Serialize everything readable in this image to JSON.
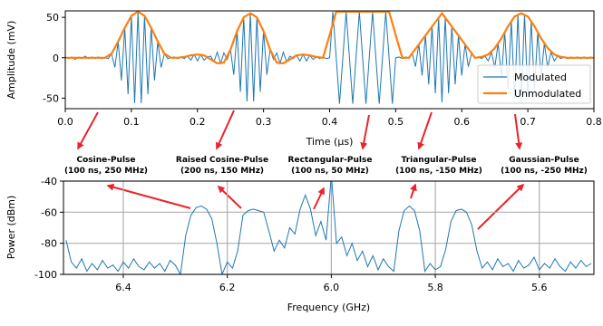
{
  "chart_data": [
    {
      "type": "line",
      "xlabel": "Time (μs)",
      "ylabel": "Amplitude (mV)",
      "xlim": [
        0,
        0.8
      ],
      "ylim": [
        -63,
        58
      ],
      "xticks": [
        {
          "value": 0,
          "label": "0.0"
        },
        0.1,
        0.2,
        0.3,
        0.4,
        0.5,
        0.6,
        0.7,
        0.8
      ],
      "yticks": [
        -50,
        0,
        50
      ],
      "legend": "lower right",
      "grid": false,
      "series": [
        {
          "name": "Modulated",
          "color": "#1f77b4",
          "x": [
            0,
            0.005,
            0.01,
            0.015,
            0.02,
            0.025,
            0.03,
            0.035,
            0.04,
            0.045,
            0.05,
            0.055,
            0.06,
            0.065,
            0.07,
            0.075,
            0.08,
            0.085,
            0.09,
            0.095,
            0.1,
            0.105,
            0.11,
            0.115,
            0.12,
            0.125,
            0.13,
            0.135,
            0.14,
            0.145,
            0.15,
            0.155,
            0.16,
            0.165,
            0.17,
            0.175,
            0.18,
            0.185,
            0.19,
            0.195,
            0.2,
            0.205,
            0.21,
            0.215,
            0.22,
            0.225,
            0.23,
            0.235,
            0.24,
            0.245,
            0.25,
            0.255,
            0.26,
            0.265,
            0.27,
            0.275,
            0.28,
            0.285,
            0.29,
            0.295,
            0.3,
            0.305,
            0.31,
            0.315,
            0.32,
            0.325,
            0.33,
            0.335,
            0.34,
            0.345,
            0.35,
            0.355,
            0.36,
            0.365,
            0.37,
            0.375,
            0.38,
            0.385,
            0.39,
            0.395,
            0.4,
            0.405,
            0.41,
            0.415,
            0.42,
            0.425,
            0.43,
            0.435,
            0.44,
            0.445,
            0.45,
            0.455,
            0.46,
            0.465,
            0.47,
            0.475,
            0.48,
            0.485,
            0.49,
            0.495,
            0.5,
            0.505,
            0.51,
            0.515,
            0.52,
            0.525,
            0.53,
            0.535,
            0.54,
            0.545,
            0.55,
            0.555,
            0.56,
            0.565,
            0.57,
            0.575,
            0.58,
            0.585,
            0.59,
            0.595,
            0.6,
            0.605,
            0.61,
            0.615,
            0.62,
            0.625,
            0.63,
            0.635,
            0.64,
            0.645,
            0.65,
            0.655,
            0.66,
            0.665,
            0.67,
            0.675,
            0.68,
            0.685,
            0.69,
            0.695,
            0.7,
            0.705,
            0.71,
            0.715,
            0.72,
            0.725,
            0.73,
            0.735,
            0.74,
            0.745,
            0.75,
            0.755,
            0.76,
            0.765,
            0.77,
            0.775,
            0.78,
            0.785,
            0.79,
            0.795,
            0.8
          ],
          "values": [
            1,
            -1,
            1,
            -2,
            1,
            -1,
            2,
            -1,
            1,
            -1,
            1,
            -1,
            0,
            -1,
            5,
            -12,
            20,
            -28,
            37,
            -45,
            52,
            -56,
            57,
            -56,
            52,
            -45,
            37,
            -28,
            20,
            -12,
            5,
            -1,
            0,
            1,
            -1,
            1,
            -1,
            2,
            -3,
            4,
            -4,
            4,
            -3,
            1,
            2,
            -5,
            7,
            -7,
            6,
            -2,
            10,
            -21,
            33,
            -42,
            50,
            -54,
            55,
            -54,
            50,
            -42,
            33,
            -21,
            10,
            -2,
            6,
            -7,
            7,
            -5,
            2,
            -1,
            3,
            -4,
            4,
            -4,
            3,
            -2,
            1,
            -1,
            1,
            -1,
            0,
            57,
            0,
            -57,
            0,
            57,
            0,
            -57,
            0,
            57,
            0,
            -57,
            0,
            57,
            0,
            -57,
            0,
            57,
            0,
            -57,
            0,
            1,
            -1,
            1,
            0,
            6,
            -11,
            17,
            -22,
            28,
            -33,
            39,
            -44,
            50,
            -55,
            50,
            -44,
            39,
            -33,
            28,
            -22,
            17,
            -11,
            6,
            0,
            1,
            -1,
            2,
            -4,
            7,
            -12,
            18,
            -24,
            32,
            -39,
            46,
            -51,
            54,
            -55,
            54,
            -51,
            46,
            -39,
            32,
            -24,
            18,
            -12,
            7,
            -4,
            2,
            -1,
            1,
            -1,
            1,
            -1,
            1,
            -1,
            1,
            -1,
            1,
            -1
          ]
        },
        {
          "name": "Unmodulated",
          "color": "#ff7f0e",
          "x": [
            0,
            0.01,
            0.02,
            0.03,
            0.04,
            0.05,
            0.06,
            0.07,
            0.08,
            0.09,
            0.1,
            0.11,
            0.12,
            0.13,
            0.14,
            0.15,
            0.16,
            0.17,
            0.18,
            0.19,
            0.2,
            0.21,
            0.22,
            0.23,
            0.24,
            0.25,
            0.26,
            0.27,
            0.28,
            0.29,
            0.3,
            0.31,
            0.32,
            0.33,
            0.34,
            0.35,
            0.36,
            0.37,
            0.38,
            0.39,
            0.4,
            0.41,
            0.42,
            0.43,
            0.44,
            0.45,
            0.46,
            0.47,
            0.48,
            0.49,
            0.5,
            0.51,
            0.52,
            0.53,
            0.54,
            0.55,
            0.56,
            0.57,
            0.58,
            0.59,
            0.6,
            0.61,
            0.62,
            0.63,
            0.64,
            0.65,
            0.66,
            0.67,
            0.68,
            0.69,
            0.7,
            0.71,
            0.72,
            0.73,
            0.74,
            0.75,
            0.76,
            0.77,
            0.78,
            0.79,
            0.8
          ],
          "values": [
            0,
            0,
            0,
            0,
            0,
            0,
            0,
            5,
            20,
            37,
            52,
            57,
            52,
            37,
            20,
            5,
            0,
            0,
            1,
            3,
            4,
            3,
            -2,
            -7,
            -6,
            10,
            33,
            50,
            55,
            50,
            33,
            10,
            -6,
            -7,
            -2,
            3,
            4,
            3,
            1,
            0,
            28,
            57,
            57,
            57,
            57,
            57,
            57,
            57,
            57,
            57,
            28,
            0,
            0,
            11,
            22,
            33,
            44,
            55,
            44,
            33,
            22,
            11,
            0,
            1,
            4,
            12,
            24,
            39,
            51,
            55,
            51,
            39,
            24,
            12,
            4,
            1,
            0,
            0,
            0,
            0,
            0
          ]
        }
      ]
    },
    {
      "type": "line",
      "xlabel": "Frequency (GHz)",
      "ylabel": "Power (dBm)",
      "xlim": [
        6.515,
        5.495
      ],
      "ylim": [
        -100,
        -40
      ],
      "xticks": [
        6.4,
        6.2,
        {
          "value": 6,
          "label": "6.0"
        },
        5.8,
        5.6
      ],
      "yticks": [
        -100,
        -80,
        -60,
        -40
      ],
      "grid": true,
      "annotations": [
        [
          "Cosine-Pulse",
          "(100 ns, 250 MHz)"
        ],
        [
          "Raised Cosine-Pulse",
          "(200 ns, 150 MHz)"
        ],
        [
          "Rectangular-Pulse",
          "(100 ns, 50 MHz)"
        ],
        [
          "Triangular-Pulse",
          "(100 ns, -150 MHz)"
        ],
        [
          "Gaussian-Pulse",
          "(100 ns, -250 MHz)"
        ]
      ],
      "series": [
        {
          "color": "#1f77b4",
          "x": [
            6.51,
            6.5,
            6.49,
            6.48,
            6.47,
            6.46,
            6.45,
            6.44,
            6.43,
            6.42,
            6.41,
            6.4,
            6.39,
            6.38,
            6.37,
            6.36,
            6.35,
            6.34,
            6.33,
            6.32,
            6.31,
            6.3,
            6.29,
            6.28,
            6.27,
            6.26,
            6.25,
            6.24,
            6.23,
            6.22,
            6.21,
            6.2,
            6.19,
            6.18,
            6.17,
            6.16,
            6.15,
            6.14,
            6.13,
            6.12,
            6.11,
            6.1,
            6.09,
            6.08,
            6.07,
            6.06,
            6.05,
            6.04,
            6.03,
            6.02,
            6.01,
            6,
            5.99,
            5.98,
            5.97,
            5.96,
            5.95,
            5.94,
            5.93,
            5.92,
            5.91,
            5.9,
            5.89,
            5.88,
            5.87,
            5.86,
            5.85,
            5.84,
            5.83,
            5.82,
            5.81,
            5.8,
            5.79,
            5.78,
            5.77,
            5.76,
            5.75,
            5.74,
            5.73,
            5.72,
            5.71,
            5.7,
            5.69,
            5.68,
            5.67,
            5.66,
            5.65,
            5.64,
            5.63,
            5.62,
            5.61,
            5.6,
            5.59,
            5.58,
            5.57,
            5.56,
            5.55,
            5.54,
            5.53,
            5.52,
            5.51,
            5.5
          ],
          "values": [
            -78,
            -92,
            -96,
            -90,
            -98,
            -93,
            -97,
            -91,
            -96,
            -94,
            -98,
            -92,
            -96,
            -90,
            -95,
            -97,
            -92,
            -96,
            -93,
            -98,
            -91,
            -94,
            -100,
            -75,
            -62,
            -57,
            -56,
            -58,
            -64,
            -80,
            -100,
            -92,
            -96,
            -85,
            -62,
            -59,
            -58,
            -59,
            -60,
            -72,
            -85,
            -78,
            -83,
            -70,
            -74,
            -58,
            -49,
            -58,
            -75,
            -66,
            -78,
            -36,
            -80,
            -76,
            -88,
            -80,
            -91,
            -85,
            -95,
            -88,
            -97,
            -90,
            -95,
            -98,
            -72,
            -59,
            -56,
            -59,
            -72,
            -98,
            -93,
            -97,
            -95,
            -84,
            -66,
            -59,
            -58,
            -60,
            -68,
            -85,
            -96,
            -92,
            -97,
            -90,
            -95,
            -93,
            -98,
            -91,
            -96,
            -94,
            -89,
            -97,
            -93,
            -96,
            -90,
            -95,
            -98,
            -92,
            -96,
            -91,
            -95,
            -93
          ]
        }
      ]
    }
  ]
}
